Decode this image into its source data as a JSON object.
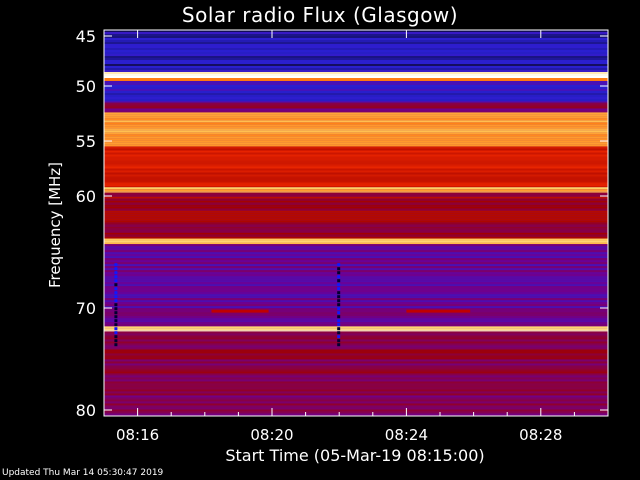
{
  "chart_data": {
    "type": "heatmap",
    "title": "Solar radio Flux (Glasgow)",
    "xlabel": "Start Time (05-Mar-19 08:15:00)",
    "ylabel": "Frequency [MHz]",
    "x_ticks": [
      "08:16",
      "08:20",
      "08:24",
      "08:28"
    ],
    "x_tick_minutes": [
      16,
      20,
      24,
      28
    ],
    "xlim_minutes": [
      15,
      30
    ],
    "y_ticks": [
      45,
      50,
      55,
      60,
      70,
      80
    ],
    "ylim": [
      45,
      80
    ],
    "y_axis_nonlinear": true,
    "colormap": [
      "#000000",
      "#2a1fd0",
      "#6c0096",
      "#a00000",
      "#e82400",
      "#ff7a10",
      "#ffd060",
      "#ffffff"
    ],
    "bands": [
      {
        "f_from": 45,
        "f_to": 48.6,
        "intensity": 0.12
      },
      {
        "f_from": 48.6,
        "f_to": 49.2,
        "intensity": 0.98
      },
      {
        "f_from": 49.2,
        "f_to": 49.5,
        "intensity": 0.7
      },
      {
        "f_from": 49.5,
        "f_to": 51.5,
        "intensity": 0.16
      },
      {
        "f_from": 51.5,
        "f_to": 52.4,
        "intensity": 0.35
      },
      {
        "f_from": 52.4,
        "f_to": 55.5,
        "intensity": 0.78
      },
      {
        "f_from": 55.5,
        "f_to": 59.2,
        "intensity": 0.52
      },
      {
        "f_from": 59.2,
        "f_to": 59.7,
        "intensity": 0.82
      },
      {
        "f_from": 59.7,
        "f_to": 63.8,
        "intensity": 0.42
      },
      {
        "f_from": 63.8,
        "f_to": 64.3,
        "intensity": 0.85
      },
      {
        "f_from": 64.3,
        "f_to": 71.8,
        "intensity": 0.27
      },
      {
        "f_from": 71.8,
        "f_to": 72.3,
        "intensity": 0.9
      },
      {
        "f_from": 72.3,
        "f_to": 80,
        "intensity": 0.36
      }
    ],
    "features": [
      {
        "kind": "vertical-streak",
        "t_minute": 15.37,
        "f_from": 66,
        "f_to": 73.5
      },
      {
        "kind": "vertical-streak",
        "t_minute": 22.0,
        "f_from": 66,
        "f_to": 73.5
      },
      {
        "kind": "horizontal-dash",
        "t_from": 18.2,
        "t_to": 19.9,
        "f": 70.3
      },
      {
        "kind": "horizontal-dash",
        "t_from": 24.0,
        "t_to": 25.9,
        "f": 70.3
      }
    ]
  },
  "footer": {
    "updated": "Updated Thu Mar 14 05:30:47 2019"
  }
}
